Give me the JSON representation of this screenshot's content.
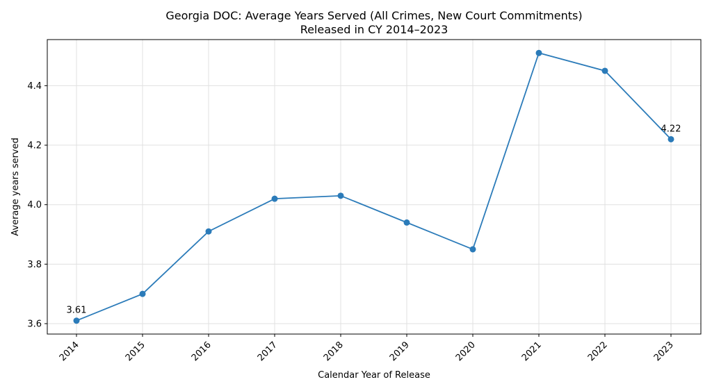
{
  "chart_data": {
    "type": "line",
    "title": [
      "Georgia DOC: Average Years Served (All Crimes, New Court Commitments)",
      "Released in CY 2014–2023"
    ],
    "xlabel": "Calendar Year of Release",
    "ylabel": "Average years served",
    "categories": [
      "2014",
      "2015",
      "2016",
      "2017",
      "2018",
      "2019",
      "2020",
      "2021",
      "2022",
      "2023"
    ],
    "values": [
      3.61,
      3.7,
      3.91,
      4.02,
      4.03,
      3.94,
      3.85,
      4.51,
      4.45,
      4.22
    ],
    "ylim": [
      3.565,
      4.555
    ],
    "yticks": [
      3.6,
      3.8,
      4.0,
      4.2,
      4.4
    ],
    "ytick_labels": [
      "3.6",
      "3.8",
      "4.0",
      "4.2",
      "4.4"
    ],
    "annotations": [
      {
        "index": 0,
        "text": "3.61"
      },
      {
        "index": 9,
        "text": "4.22"
      }
    ],
    "grid": true,
    "line_color": "#2b7bb9",
    "marker_color": "#2b7bb9"
  }
}
